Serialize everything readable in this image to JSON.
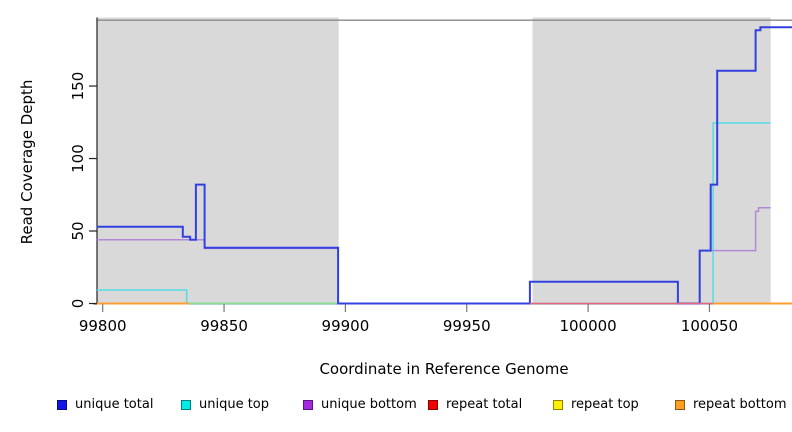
{
  "chart": {
    "y_axis_label": "Read Coverage Depth",
    "x_axis_label": "Coordinate in Reference Genome"
  },
  "legend": {
    "items": [
      {
        "label": "unique total",
        "color": "#1414e8"
      },
      {
        "label": "unique top",
        "color": "#00e8e8"
      },
      {
        "label": "unique bottom",
        "color": "#a428e0"
      },
      {
        "label": "repeat total",
        "color": "#f00000"
      },
      {
        "label": "repeat top",
        "color": "#fff000"
      },
      {
        "label": "repeat bottom",
        "color": "#ffa022"
      }
    ]
  },
  "chart_data": {
    "type": "line",
    "title": "",
    "xlabel": "Coordinate in Reference Genome",
    "ylabel": "Read Coverage Depth",
    "xlim": [
      99797.6,
      100084
    ],
    "ylim": [
      0,
      196
    ],
    "x_ticks": [
      99800,
      99850,
      99900,
      99950,
      100000,
      100050
    ],
    "y_ticks": [
      0,
      50,
      100,
      150
    ],
    "grid": false,
    "legend_position": "bottom",
    "background": "#ffffff",
    "panel_color": "#d9d9d9",
    "shaded_regions": [
      [
        99797.6,
        99897.2
      ],
      [
        99977.1,
        100075.2
      ]
    ],
    "series": [
      {
        "name": "unique top",
        "color": "#55dde4",
        "width": 1.5,
        "segments": [
          [
            [
              99797.6,
              9.3
            ],
            [
              99834.6,
              0
            ],
            [
              100051.5,
              124.5
            ],
            [
              100075.2,
              124.5
            ]
          ]
        ]
      },
      {
        "name": "repeat top",
        "color": "#8fdc8f",
        "width": 1.5,
        "segments": [
          [
            [
              99835,
              0
            ],
            [
              99897.2,
              0
            ]
          ]
        ]
      },
      {
        "name": "unique bottom",
        "color": "#b288d8",
        "width": 1.5,
        "segments": [
          [
            [
              99797.6,
              44
            ],
            [
              99842,
              38
            ],
            [
              99897,
              0
            ],
            [
              99976,
              0
            ]
          ],
          [
            [
              100046,
              0
            ],
            [
              100046,
              36.5
            ],
            [
              100069,
              63.5
            ],
            [
              100070.2,
              66
            ],
            [
              100075.2,
              66
            ]
          ]
        ]
      },
      {
        "name": "unique total",
        "color": "#3340e0",
        "width": 2,
        "segments": [
          [
            [
              99797.6,
              53
            ],
            [
              99833,
              46
            ],
            [
              99836,
              44
            ],
            [
              99838.4,
              82
            ],
            [
              99842,
              38.5
            ],
            [
              99897,
              0
            ],
            [
              99976,
              15
            ],
            [
              100037,
              0
            ],
            [
              100046,
              36.5
            ],
            [
              100050.5,
              82
            ],
            [
              100053.2,
              160.5
            ],
            [
              100069,
              188.5
            ],
            [
              100071,
              190.5
            ],
            [
              100084,
              190.5
            ]
          ]
        ]
      },
      {
        "name": "repeat total",
        "color": "#e8637e",
        "width": 1.5,
        "segments": [
          [
            [
              99976,
              0
            ],
            [
              100051.5,
              0
            ]
          ]
        ]
      },
      {
        "name": "repeat bottom",
        "color": "#ff9e30",
        "width": 2,
        "segments": [
          [
            [
              99797.6,
              0
            ],
            [
              99835.5,
              0
            ]
          ],
          [
            [
              100051.5,
              0
            ],
            [
              100084,
              0
            ]
          ]
        ]
      }
    ]
  }
}
